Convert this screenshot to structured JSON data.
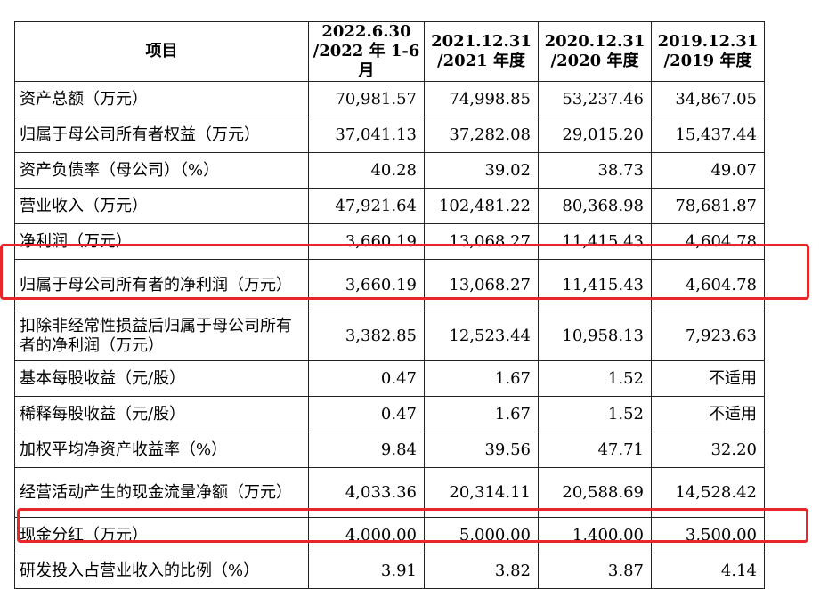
{
  "table": {
    "headers": [
      {
        "line1": "项目",
        "line2": ""
      },
      {
        "line1": "2022.6.30",
        "line2": "/2022 年 1-6 月"
      },
      {
        "line1": "2021.12.31",
        "line2": "/2021 年度"
      },
      {
        "line1": "2020.12.31",
        "line2": "/2020 年度"
      },
      {
        "line1": "2019.12.31",
        "line2": "/2019 年度"
      }
    ],
    "rows": [
      {
        "label": "资产总额（万元）",
        "values": [
          "70,981.57",
          "74,998.85",
          "53,237.46",
          "34,867.05"
        ]
      },
      {
        "label": "归属于母公司所有者权益（万元）",
        "values": [
          "37,041.13",
          "37,282.08",
          "29,015.20",
          "15,437.44"
        ]
      },
      {
        "label": "资产负债率（母公司）（%）",
        "values": [
          "40.28",
          "39.02",
          "38.73",
          "49.07"
        ]
      },
      {
        "label": "营业收入（万元）",
        "values": [
          "47,921.64",
          "102,481.22",
          "80,368.98",
          "78,681.87"
        ]
      },
      {
        "label": "净利润（万元）",
        "values": [
          "3,660.19",
          "13,068.27",
          "11,415.43",
          "4,604.78"
        ]
      },
      {
        "label": "归属于母公司所有者的净利润（万元）",
        "values": [
          "3,660.19",
          "13,068.27",
          "11,415.43",
          "4,604.78"
        ]
      },
      {
        "label": "扣除非经常性损益后归属于母公司所有者的净利润（万元）",
        "values": [
          "3,382.85",
          "12,523.44",
          "10,958.13",
          "7,923.63"
        ]
      },
      {
        "label": "基本每股收益（元/股）",
        "values": [
          "0.47",
          "1.67",
          "1.52",
          "不适用"
        ]
      },
      {
        "label": "稀释每股收益（元/股）",
        "values": [
          "0.47",
          "1.67",
          "1.52",
          "不适用"
        ]
      },
      {
        "label": "加权平均净资产收益率（%）",
        "values": [
          "9.84",
          "39.56",
          "47.71",
          "32.20"
        ]
      },
      {
        "label": "经营活动产生的现金流量净额（万元）",
        "values": [
          "4,033.36",
          "20,314.11",
          "20,588.69",
          "14,528.42"
        ]
      },
      {
        "label": "现金分红（万元）",
        "values": [
          "4,000.00",
          "5,000.00",
          "1,400.00",
          "3,500.00"
        ]
      },
      {
        "label": "研发投入占营业收入的比例（%）",
        "values": [
          "3.91",
          "3.82",
          "3.87",
          "4.14"
        ]
      }
    ]
  },
  "highlight": {
    "color": "#e8272b",
    "rows": [
      "归属于母公司所有者的净利润（万元）",
      "现金分红（万元）"
    ]
  }
}
